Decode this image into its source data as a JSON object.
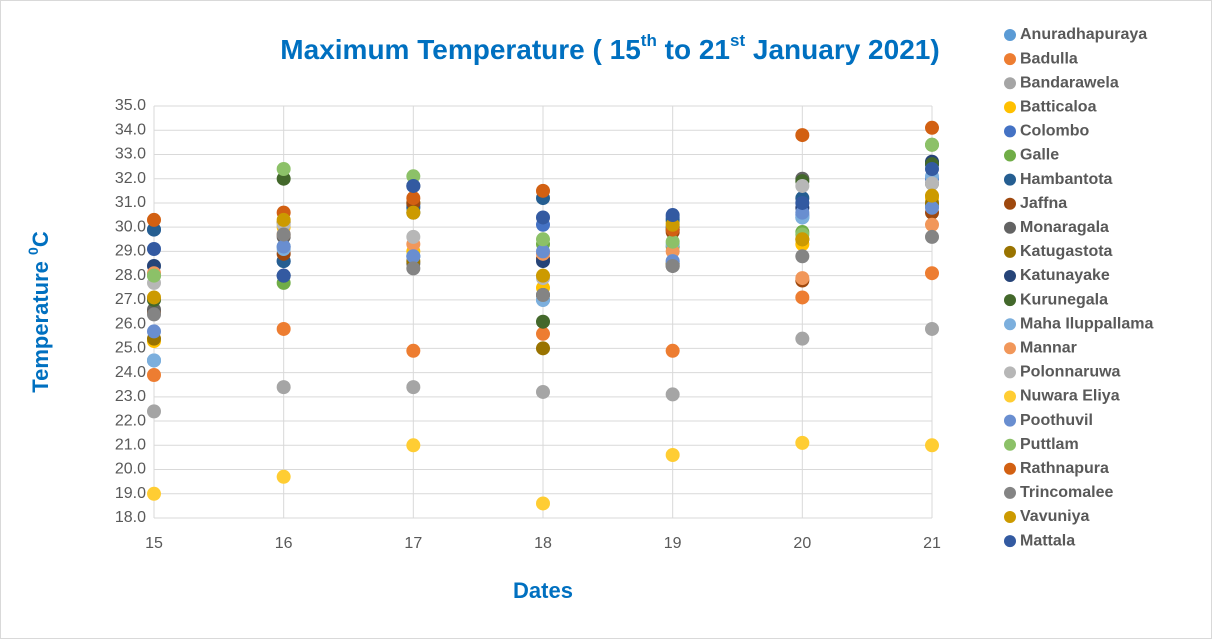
{
  "chart_data": {
    "type": "scatter",
    "title": [
      "Maximum Temperature ( 15",
      "th",
      " to 21",
      "st",
      " January 2021)"
    ],
    "xlabel": "Dates",
    "ylabel": [
      "Temperature ",
      "0",
      "C"
    ],
    "x": [
      15,
      16,
      17,
      18,
      19,
      20,
      21
    ],
    "xlim": [
      15,
      21
    ],
    "xticks": [
      15,
      16,
      17,
      18,
      19,
      20,
      21
    ],
    "ylim": [
      18,
      35
    ],
    "yticks": [
      {
        "value": 18,
        "label": "18.0"
      },
      {
        "value": 19,
        "label": "19.0"
      },
      {
        "value": 20,
        "label": "20.0"
      },
      {
        "value": 21,
        "label": "21.0"
      },
      {
        "value": 22,
        "label": "22.0"
      },
      {
        "value": 23,
        "label": "23.0"
      },
      {
        "value": 24,
        "label": "24.0"
      },
      {
        "value": 25,
        "label": "25.0"
      },
      {
        "value": 26,
        "label": "26.0"
      },
      {
        "value": 27,
        "label": "27.0"
      },
      {
        "value": 28,
        "label": "28.0"
      },
      {
        "value": 29,
        "label": "29.0"
      },
      {
        "value": 30,
        "label": "30.0"
      },
      {
        "value": 31,
        "label": "31.0"
      },
      {
        "value": 32,
        "label": "32.0"
      },
      {
        "value": 33,
        "label": "33.0"
      },
      {
        "value": 34,
        "label": "34.0"
      },
      {
        "value": 35,
        "label": "35.0"
      }
    ],
    "grid": true,
    "legend": "right",
    "series": [
      {
        "name": "Anuradhapuraya",
        "color": "#5b9bd5",
        "values": [
          24.5,
          29.2,
          28.8,
          27.0,
          28.5,
          30.4,
          30.9
        ]
      },
      {
        "name": "Badulla",
        "color": "#ed7d31",
        "values": [
          23.9,
          25.8,
          24.9,
          25.6,
          24.9,
          27.1,
          28.1
        ]
      },
      {
        "name": "Bandarawela",
        "color": "#a5a5a5",
        "values": [
          22.4,
          23.4,
          23.4,
          23.2,
          23.1,
          25.4,
          25.8
        ]
      },
      {
        "name": "Batticaloa",
        "color": "#ffc000",
        "values": [
          25.3,
          30.0,
          29.0,
          27.5,
          30.2,
          29.3,
          31.2
        ]
      },
      {
        "name": "Colombo",
        "color": "#4472c4",
        "values": [
          29.9,
          28.6,
          30.9,
          30.1,
          30.4,
          30.5,
          32.0
        ]
      },
      {
        "name": "Galle",
        "color": "#70ad47",
        "values": [
          28.0,
          27.7,
          31.0,
          29.3,
          29.2,
          29.8,
          33.4
        ]
      },
      {
        "name": "Hambantota",
        "color": "#255e91",
        "values": [
          29.9,
          28.6,
          30.8,
          31.2,
          30.3,
          31.2,
          32.6
        ]
      },
      {
        "name": "Jaffna",
        "color": "#9e480e",
        "values": [
          26.5,
          28.9,
          31.0,
          28.7,
          29.8,
          27.8,
          30.6
        ]
      },
      {
        "name": "Monaragala",
        "color": "#636363",
        "values": [
          26.6,
          29.6,
          28.5,
          27.2,
          28.4,
          32.0,
          31.8
        ]
      },
      {
        "name": "Katugastota",
        "color": "#997300",
        "values": [
          25.4,
          30.2,
          28.6,
          25.0,
          28.5,
          29.5,
          31.0
        ]
      },
      {
        "name": "Katunayake",
        "color": "#264478",
        "values": [
          28.4,
          28.0,
          31.7,
          28.6,
          30.0,
          30.8,
          32.7
        ]
      },
      {
        "name": "Kurunegala",
        "color": "#43682b",
        "values": [
          27.0,
          32.0,
          30.6,
          26.1,
          29.9,
          31.9,
          32.6
        ]
      },
      {
        "name": "Maha Iluppallama",
        "color": "#7cafdd",
        "values": [
          24.5,
          29.1,
          28.8,
          27.0,
          29.3,
          30.4,
          32.1
        ]
      },
      {
        "name": "Mannar",
        "color": "#f1975a",
        "values": [
          28.1,
          29.7,
          29.3,
          28.9,
          29.0,
          27.9,
          30.1
        ]
      },
      {
        "name": "Polonnaruwa",
        "color": "#b7b7b7",
        "values": [
          27.7,
          30.1,
          29.6,
          27.9,
          28.6,
          31.7,
          31.8
        ]
      },
      {
        "name": "Nuwara Eliya",
        "color": "#ffcd33",
        "values": [
          19.0,
          19.7,
          21.0,
          18.6,
          20.6,
          21.1,
          21.0
        ]
      },
      {
        "name": "Poothuvil",
        "color": "#698ed0",
        "values": [
          25.7,
          29.2,
          28.8,
          29.0,
          28.6,
          30.6,
          30.8
        ]
      },
      {
        "name": "Puttlam",
        "color": "#8cc168",
        "values": [
          28.0,
          32.4,
          32.1,
          29.5,
          29.4,
          29.7,
          33.4
        ]
      },
      {
        "name": "Rathnapura",
        "color": "#d26012",
        "values": [
          30.3,
          30.6,
          31.2,
          31.5,
          29.9,
          33.8,
          34.1
        ]
      },
      {
        "name": "Trincomalee",
        "color": "#848484",
        "values": [
          26.4,
          29.7,
          28.3,
          27.2,
          28.4,
          28.8,
          29.6
        ]
      },
      {
        "name": "Vavuniya",
        "color": "#cc9a00",
        "values": [
          27.1,
          30.3,
          30.6,
          28.0,
          30.1,
          29.5,
          31.3
        ]
      },
      {
        "name": "Mattala",
        "color": "#335aa1",
        "values": [
          29.1,
          28.0,
          31.7,
          30.4,
          30.5,
          31.0,
          32.4
        ]
      }
    ]
  }
}
